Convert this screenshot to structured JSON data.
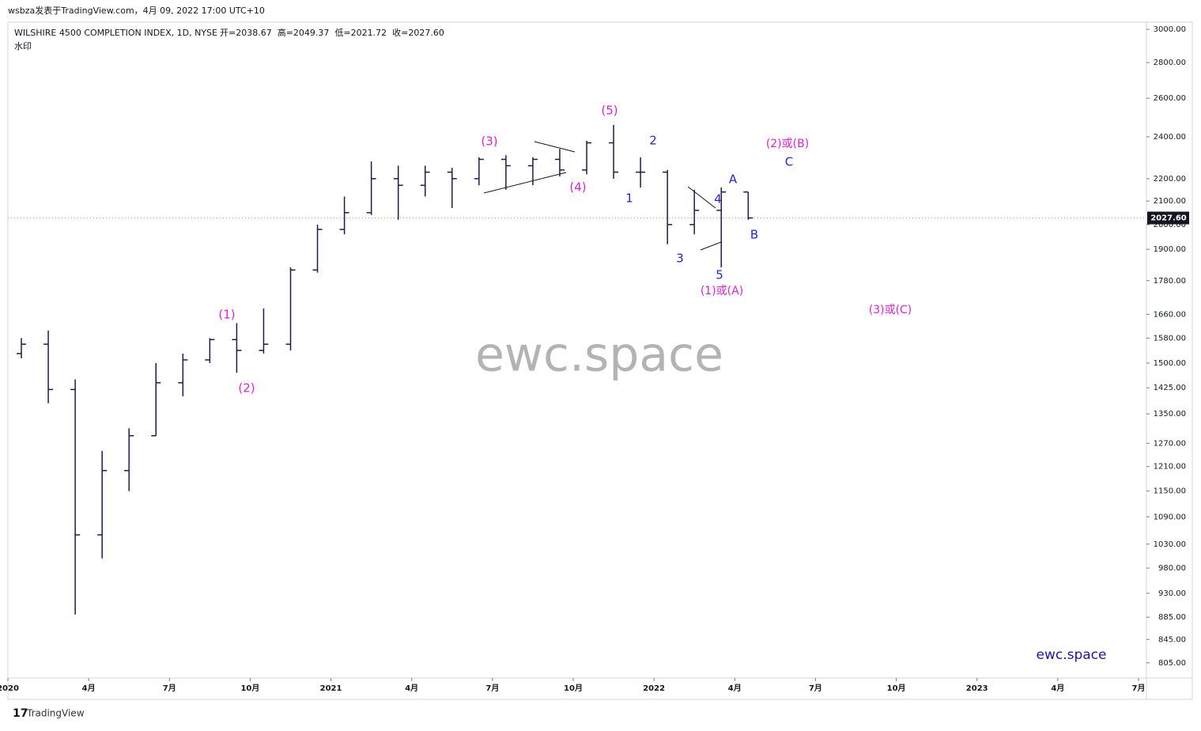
{
  "header": {
    "attribution": "wsbza发表于TradingView.com，4月 09, 2022 17:00 UTC+10",
    "watermark_label": "水印",
    "footer": "TradingView"
  },
  "chart_data": {
    "type": "ohlc",
    "title": "WILSHIRE 4500 COMPLETION INDEX, 1D, NYSE",
    "ohlc_legend": [
      "开=2038.67",
      "高=2049.37",
      "低=2021.72",
      "收=2027.60"
    ],
    "color": "#1c1c4a",
    "log": true,
    "watermark": "ewc.space",
    "brand": "ewc.space",
    "x": [
      "2020-01",
      "2020-02",
      "2020-03",
      "2020-04",
      "2020-05",
      "2020-06",
      "2020-07",
      "2020-08",
      "2020-09",
      "2020-10",
      "2020-11",
      "2020-12",
      "2021-01",
      "2021-02",
      "2021-03",
      "2021-04",
      "2021-05",
      "2021-06",
      "2021-07",
      "2021-08",
      "2021-09",
      "2021-10",
      "2021-11",
      "2021-12",
      "2022-01",
      "2022-02",
      "2022-03",
      "2022-04"
    ],
    "open": [
      1530,
      1560,
      1420,
      1050,
      1200,
      1290,
      1440,
      1510,
      1575,
      1540,
      1560,
      1820,
      1980,
      2050,
      2200,
      2170,
      2230,
      2200,
      2290,
      2260,
      2290,
      2240,
      2370,
      2230,
      2230,
      2000,
      2060,
      2140
    ],
    "high": [
      1580,
      1605,
      1450,
      1250,
      1310,
      1500,
      1530,
      1580,
      1630,
      1680,
      1830,
      2000,
      2120,
      2280,
      2260,
      2260,
      2250,
      2300,
      2310,
      2300,
      2340,
      2380,
      2460,
      2300,
      2240,
      2150,
      2160,
      2140
    ],
    "low": [
      1515,
      1380,
      890,
      1000,
      1150,
      1290,
      1400,
      1500,
      1470,
      1530,
      1540,
      1810,
      1960,
      2040,
      2020,
      2120,
      2070,
      2170,
      2150,
      2170,
      2210,
      2220,
      2200,
      2160,
      1920,
      1960,
      1830,
      2020
    ],
    "close": [
      1560,
      1420,
      1050,
      1200,
      1290,
      1440,
      1510,
      1575,
      1540,
      1560,
      1820,
      1980,
      2050,
      2200,
      2170,
      2230,
      2200,
      2290,
      2260,
      2290,
      2240,
      2370,
      2230,
      2230,
      2000,
      2060,
      2140,
      2027.6
    ],
    "last_price": {
      "value": 2027.6,
      "label": "2027.60"
    },
    "xlim": [
      "2020-01",
      "2023-07"
    ],
    "xticks": [
      {
        "value": "2020-01",
        "label": "2020"
      },
      {
        "value": "2020-04",
        "label": "4月"
      },
      {
        "value": "2020-07",
        "label": "7月"
      },
      {
        "value": "2020-10",
        "label": "10月"
      },
      {
        "value": "2021-01",
        "label": "2021"
      },
      {
        "value": "2021-04",
        "label": "4月"
      },
      {
        "value": "2021-07",
        "label": "7月"
      },
      {
        "value": "2021-10",
        "label": "10月"
      },
      {
        "value": "2022-01",
        "label": "2022"
      },
      {
        "value": "2022-04",
        "label": "4月"
      },
      {
        "value": "2022-07",
        "label": "7月"
      },
      {
        "value": "2022-10",
        "label": "10月"
      },
      {
        "value": "2023-01",
        "label": "2023"
      },
      {
        "value": "2023-04",
        "label": "4月"
      },
      {
        "value": "2023-07",
        "label": "7月"
      }
    ],
    "ylim": [
      780,
      3045
    ],
    "yticks": [
      {
        "value": 3000,
        "label": "3000.00"
      },
      {
        "value": 2800,
        "label": "2800.00"
      },
      {
        "value": 2600,
        "label": "2600.00"
      },
      {
        "value": 2400,
        "label": "2400.00"
      },
      {
        "value": 2200,
        "label": "2200.00"
      },
      {
        "value": 2100,
        "label": "2100.00"
      },
      {
        "value": 2000,
        "label": "2000.00"
      },
      {
        "value": 1900,
        "label": "1900.00"
      },
      {
        "value": 1780,
        "label": "1780.00"
      },
      {
        "value": 1660,
        "label": "1660.00"
      },
      {
        "value": 1580,
        "label": "1580.00"
      },
      {
        "value": 1500,
        "label": "1500.00"
      },
      {
        "value": 1425,
        "label": "1425.00"
      },
      {
        "value": 1350,
        "label": "1350.00"
      },
      {
        "value": 1270,
        "label": "1270.00"
      },
      {
        "value": 1210,
        "label": "1210.00"
      },
      {
        "value": 1150,
        "label": "1150.00"
      },
      {
        "value": 1090,
        "label": "1090.00"
      },
      {
        "value": 1030,
        "label": "1030.00"
      },
      {
        "value": 980,
        "label": "980.00"
      },
      {
        "value": 930,
        "label": "930.00"
      },
      {
        "value": 885,
        "label": "885.00"
      },
      {
        "value": 845,
        "label": "845.00"
      },
      {
        "value": 805,
        "label": "805.00"
      }
    ],
    "annotations": [
      {
        "text": "(1)",
        "color": "#e020d8"
      },
      {
        "text": "(2)",
        "color": "#e020d8"
      },
      {
        "text": "(3)",
        "color": "#e020d8"
      },
      {
        "text": "(4)",
        "color": "#e020d8"
      },
      {
        "text": "(5)",
        "color": "#e020d8"
      },
      {
        "text": "1",
        "color": "#2424d8"
      },
      {
        "text": "2",
        "color": "#2424d8"
      },
      {
        "text": "3",
        "color": "#2424d8"
      },
      {
        "text": "4",
        "color": "#2424d8"
      },
      {
        "text": "5",
        "color": "#2424d8"
      },
      {
        "text": "(1)或(A)",
        "color": "#e020d8"
      },
      {
        "text": "A",
        "color": "#2424d8"
      },
      {
        "text": "B",
        "color": "#2424d8"
      },
      {
        "text": "C",
        "color": "#2424d8"
      },
      {
        "text": "(2)或(B)",
        "color": "#e020d8"
      },
      {
        "text": "(3)或(C)",
        "color": "#e020d8"
      }
    ]
  }
}
